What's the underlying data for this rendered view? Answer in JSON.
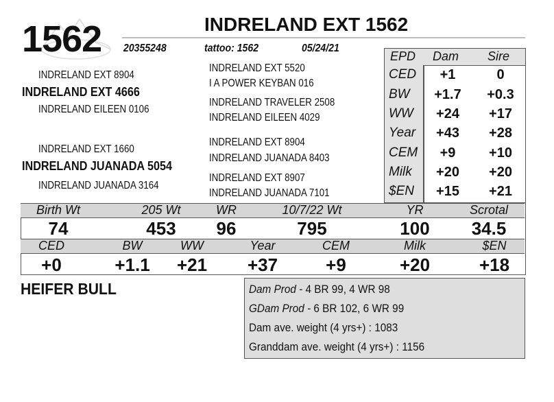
{
  "header": {
    "lot_number": "1562",
    "title": "INDRELAND EXT 1562",
    "registration": "20355248",
    "tattoo": "tattoo: 1562",
    "birth_date": "05/24/21"
  },
  "pedigree": {
    "sire_sire": "INDRELAND EXT 8904",
    "sire": "INDRELAND EXT 4666",
    "sire_dam": "INDRELAND EILEEN 0106",
    "sss": "INDRELAND EXT 5520",
    "ssd": "I A POWER KEYBAN 016",
    "sds": "INDRELAND TRAVELER 2508",
    "sdd": "INDRELAND EILEEN 4029",
    "dam_sire": "INDRELAND EXT 1660",
    "dam": "INDRELAND JUANADA 5054",
    "dam_dam": "INDRELAND JUANADA 3164",
    "dss": "INDRELAND EXT 8904",
    "dsd": "INDRELAND JUANADA 8403",
    "dds": "INDRELAND EXT 8907",
    "ddd": "INDRELAND JUANADA 7101"
  },
  "parent_epd": {
    "headers": [
      "EPD",
      "Dam",
      "Sire"
    ],
    "rows": [
      {
        "trait": "CED",
        "dam": "+1",
        "sire": "0"
      },
      {
        "trait": "BW",
        "dam": "+1.7",
        "sire": "+0.3"
      },
      {
        "trait": "WW",
        "dam": "+24",
        "sire": "+17"
      },
      {
        "trait": "Year",
        "dam": "+43",
        "sire": "+28"
      },
      {
        "trait": "CEM",
        "dam": "+9",
        "sire": "+10"
      },
      {
        "trait": "Milk",
        "dam": "+20",
        "sire": "+20"
      },
      {
        "trait": "$EN",
        "dam": "+15",
        "sire": "+21"
      }
    ]
  },
  "performance": {
    "labels": [
      "Birth Wt",
      "205 Wt",
      "WR",
      "10/7/22 Wt",
      "YR",
      "Scrotal"
    ],
    "values": [
      "74",
      "453",
      "96",
      "795",
      "100",
      "34.5"
    ]
  },
  "calf_epd": {
    "labels": [
      "CED",
      "BW",
      "WW",
      "Year",
      "CEM",
      "Milk",
      "$EN"
    ],
    "values": [
      "+0",
      "+1.1",
      "+21",
      "+37",
      "+9",
      "+20",
      "+18"
    ]
  },
  "category": "HEIFER BULL",
  "production": {
    "dam_prod_label": "Dam Prod -",
    "dam_prod_value": "4 BR 99, 4 WR 98",
    "gdam_prod_label": "GDam Prod -",
    "gdam_prod_value": "6 BR 102, 6 WR 99",
    "dam_ave_weight": "Dam ave. weight (4 yrs+) : 1083",
    "granddam_ave_weight": "Granddam ave. weight (4 yrs+) : 1156"
  }
}
